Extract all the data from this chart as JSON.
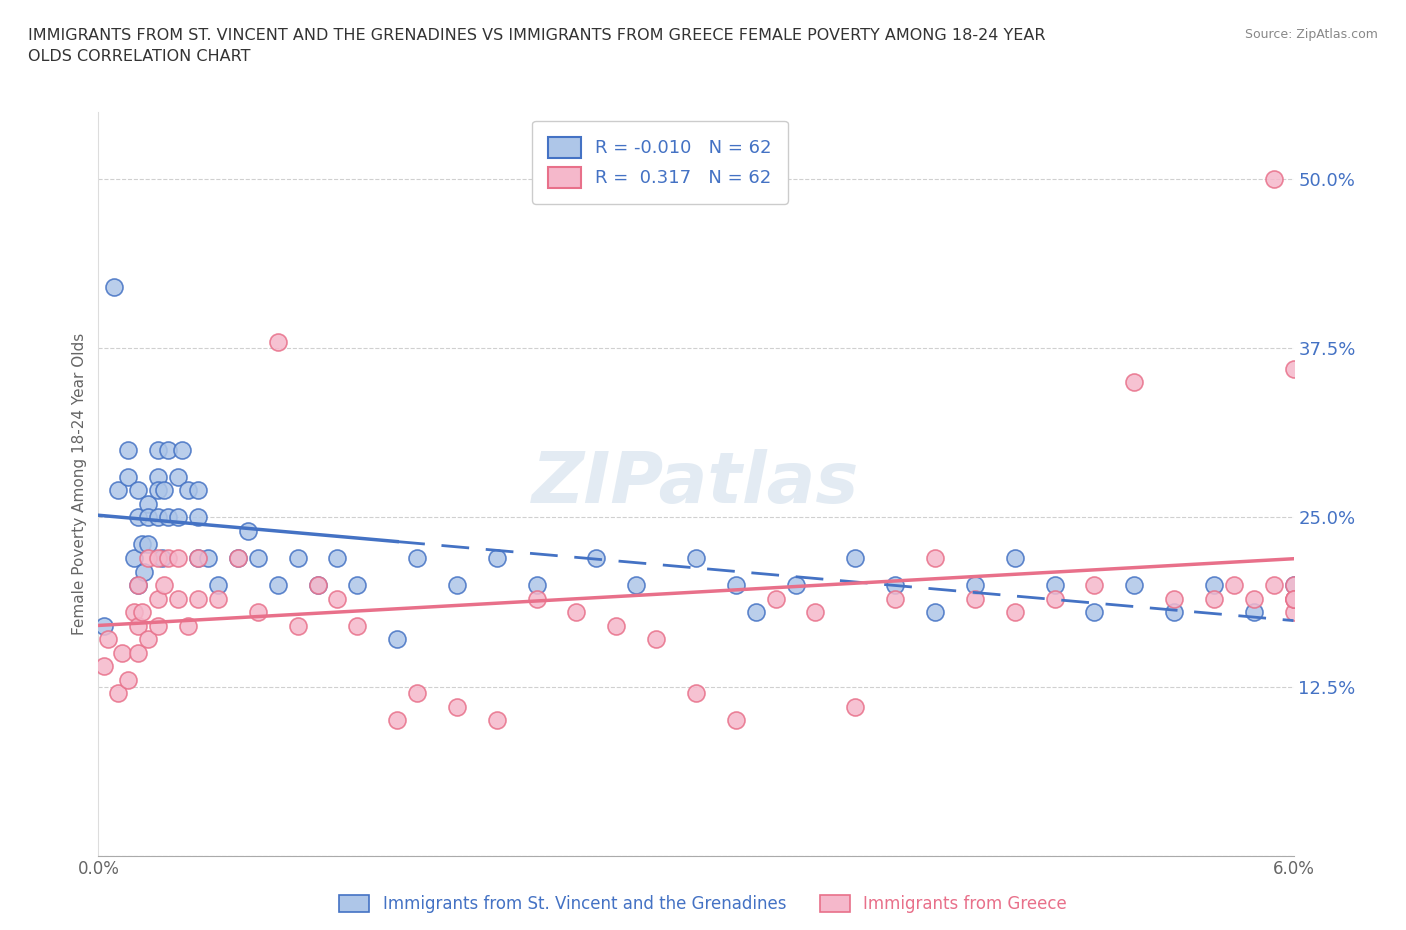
{
  "title": "IMMIGRANTS FROM ST. VINCENT AND THE GRENADINES VS IMMIGRANTS FROM GREECE FEMALE POVERTY AMONG 18-24 YEAR\nOLDS CORRELATION CHART",
  "source": "Source: ZipAtlas.com",
  "xlabel_blue": "Immigrants from St. Vincent and the Grenadines",
  "xlabel_pink": "Immigrants from Greece",
  "ylabel": "Female Poverty Among 18-24 Year Olds",
  "xlim": [
    0.0,
    0.06
  ],
  "ylim": [
    0.0,
    0.55
  ],
  "xticks": [
    0.0,
    0.01,
    0.02,
    0.03,
    0.04,
    0.05,
    0.06
  ],
  "xtick_labels": [
    "0.0%",
    "",
    "",
    "",
    "",
    "",
    "6.0%"
  ],
  "yticks": [
    0.0,
    0.125,
    0.25,
    0.375,
    0.5
  ],
  "ytick_labels": [
    "",
    "12.5%",
    "25.0%",
    "37.5%",
    "50.0%"
  ],
  "R_blue": -0.01,
  "R_pink": 0.317,
  "N_blue": 62,
  "N_pink": 62,
  "color_blue": "#aec6e8",
  "color_pink": "#f5b8cb",
  "line_color_blue": "#4472c4",
  "line_color_pink": "#e8708a",
  "watermark": "ZIPatlas",
  "grid_color": "#d0d0d0",
  "blue_scatter_x": [
    0.0003,
    0.0008,
    0.001,
    0.0015,
    0.0015,
    0.0018,
    0.002,
    0.002,
    0.002,
    0.0022,
    0.0023,
    0.0025,
    0.0025,
    0.0025,
    0.003,
    0.003,
    0.003,
    0.003,
    0.0032,
    0.0033,
    0.0035,
    0.0035,
    0.004,
    0.004,
    0.0042,
    0.0045,
    0.005,
    0.005,
    0.005,
    0.0055,
    0.006,
    0.007,
    0.0075,
    0.008,
    0.009,
    0.01,
    0.011,
    0.012,
    0.013,
    0.015,
    0.016,
    0.018,
    0.02,
    0.022,
    0.025,
    0.027,
    0.03,
    0.032,
    0.033,
    0.035,
    0.038,
    0.04,
    0.042,
    0.044,
    0.046,
    0.048,
    0.05,
    0.052,
    0.054,
    0.056,
    0.058,
    0.06
  ],
  "blue_scatter_y": [
    0.17,
    0.42,
    0.27,
    0.3,
    0.28,
    0.22,
    0.2,
    0.25,
    0.27,
    0.23,
    0.21,
    0.26,
    0.23,
    0.25,
    0.28,
    0.3,
    0.27,
    0.25,
    0.22,
    0.27,
    0.25,
    0.3,
    0.28,
    0.25,
    0.3,
    0.27,
    0.25,
    0.22,
    0.27,
    0.22,
    0.2,
    0.22,
    0.24,
    0.22,
    0.2,
    0.22,
    0.2,
    0.22,
    0.2,
    0.16,
    0.22,
    0.2,
    0.22,
    0.2,
    0.22,
    0.2,
    0.22,
    0.2,
    0.18,
    0.2,
    0.22,
    0.2,
    0.18,
    0.2,
    0.22,
    0.2,
    0.18,
    0.2,
    0.18,
    0.2,
    0.18,
    0.2
  ],
  "pink_scatter_x": [
    0.0003,
    0.0005,
    0.001,
    0.0012,
    0.0015,
    0.0018,
    0.002,
    0.002,
    0.002,
    0.0022,
    0.0025,
    0.0025,
    0.003,
    0.003,
    0.003,
    0.0033,
    0.0035,
    0.004,
    0.004,
    0.0045,
    0.005,
    0.005,
    0.006,
    0.007,
    0.008,
    0.009,
    0.01,
    0.011,
    0.012,
    0.013,
    0.015,
    0.016,
    0.018,
    0.02,
    0.022,
    0.024,
    0.026,
    0.028,
    0.03,
    0.032,
    0.034,
    0.036,
    0.038,
    0.04,
    0.042,
    0.044,
    0.046,
    0.048,
    0.05,
    0.052,
    0.054,
    0.056,
    0.057,
    0.058,
    0.059,
    0.059,
    0.06,
    0.06,
    0.06,
    0.06,
    0.06,
    0.06
  ],
  "pink_scatter_y": [
    0.14,
    0.16,
    0.12,
    0.15,
    0.13,
    0.18,
    0.15,
    0.17,
    0.2,
    0.18,
    0.22,
    0.16,
    0.19,
    0.22,
    0.17,
    0.2,
    0.22,
    0.19,
    0.22,
    0.17,
    0.19,
    0.22,
    0.19,
    0.22,
    0.18,
    0.38,
    0.17,
    0.2,
    0.19,
    0.17,
    0.1,
    0.12,
    0.11,
    0.1,
    0.19,
    0.18,
    0.17,
    0.16,
    0.12,
    0.1,
    0.19,
    0.18,
    0.11,
    0.19,
    0.22,
    0.19,
    0.18,
    0.19,
    0.2,
    0.35,
    0.19,
    0.19,
    0.2,
    0.19,
    0.5,
    0.2,
    0.18,
    0.19,
    0.2,
    0.19,
    0.36,
    0.19
  ]
}
